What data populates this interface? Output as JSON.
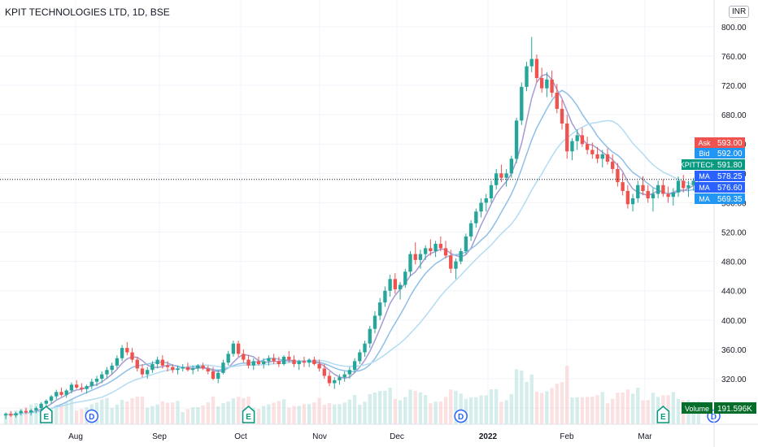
{
  "header": {
    "title": "KPIT TECHNOLOGIES LTD, 1D, BSE",
    "currency": "INR"
  },
  "colors": {
    "up": "#26a69a",
    "down": "#ef5350",
    "grid": "#f0f3fa",
    "axis_text": "#131722",
    "ma1": "#a69cd1",
    "ma2": "#8fbfe6",
    "ma3": "#b3dcf2",
    "ask": "#ef5350",
    "bid": "#2196f3",
    "last": "#089981",
    "ma_badge": "#2962ff",
    "volume_badge": "#056d2a"
  },
  "chart_data": {
    "type": "candlestick",
    "y_ticks": [
      "800.00",
      "760.00",
      "720.00",
      "680.00",
      "640.00",
      "600.00",
      "560.00",
      "520.00",
      "480.00",
      "440.00",
      "400.00",
      "360.00",
      "320.00",
      "280.00"
    ],
    "ylim": [
      258,
      812
    ],
    "x_ticks": [
      "Aug",
      "Sep",
      "Oct",
      "Nov",
      "Dec",
      "2022",
      "Feb",
      "Mar"
    ],
    "price_tags": [
      {
        "label": "Ask",
        "value": "593.00",
        "color": "#ef5350",
        "price": 593.0
      },
      {
        "label": "Bid",
        "value": "592.00",
        "color": "#2196f3",
        "price": 592.0
      },
      {
        "label": "KPITTECH",
        "value": "591.80",
        "color": "#089981",
        "price": 591.8
      },
      {
        "label": "MA",
        "value": "578.25",
        "color": "#2962ff",
        "price": 578.25
      },
      {
        "label": "MA",
        "value": "576.60",
        "color": "#2962ff",
        "price": 576.6
      },
      {
        "label": "MA",
        "value": "569.35",
        "color": "#2196f3",
        "price": 569.35
      }
    ],
    "volume": {
      "label": "Volume",
      "value": "191.596K"
    },
    "events": [
      {
        "type": "E",
        "x_index": 8
      },
      {
        "type": "D",
        "x_index": 17
      },
      {
        "type": "E",
        "x_index": 48
      },
      {
        "type": "D",
        "x_index": 90
      },
      {
        "type": "E",
        "x_index": 130
      },
      {
        "type": "D",
        "x_index": 140
      }
    ],
    "candles": [
      [
        270,
        274,
        265,
        272
      ],
      [
        272,
        276,
        268,
        270
      ],
      [
        270,
        275,
        267,
        273
      ],
      [
        273,
        278,
        270,
        276
      ],
      [
        276,
        280,
        272,
        274
      ],
      [
        274,
        279,
        270,
        277
      ],
      [
        277,
        282,
        273,
        280
      ],
      [
        280,
        288,
        276,
        286
      ],
      [
        286,
        292,
        282,
        290
      ],
      [
        290,
        298,
        286,
        296
      ],
      [
        296,
        305,
        292,
        302
      ],
      [
        302,
        308,
        296,
        298
      ],
      [
        298,
        306,
        294,
        304
      ],
      [
        304,
        315,
        300,
        312
      ],
      [
        312,
        318,
        306,
        308
      ],
      [
        308,
        314,
        302,
        306
      ],
      [
        306,
        312,
        300,
        310
      ],
      [
        310,
        320,
        306,
        316
      ],
      [
        316,
        324,
        310,
        320
      ],
      [
        320,
        330,
        314,
        326
      ],
      [
        326,
        336,
        320,
        332
      ],
      [
        332,
        342,
        326,
        338
      ],
      [
        338,
        352,
        334,
        348
      ],
      [
        348,
        366,
        344,
        362
      ],
      [
        362,
        370,
        352,
        356
      ],
      [
        356,
        362,
        342,
        346
      ],
      [
        346,
        350,
        330,
        334
      ],
      [
        334,
        340,
        322,
        326
      ],
      [
        326,
        336,
        320,
        332
      ],
      [
        332,
        344,
        328,
        340
      ],
      [
        340,
        350,
        334,
        346
      ],
      [
        346,
        352,
        334,
        338
      ],
      [
        338,
        344,
        330,
        336
      ],
      [
        336,
        340,
        328,
        332
      ],
      [
        332,
        338,
        326,
        334
      ],
      [
        334,
        340,
        330,
        336
      ],
      [
        336,
        342,
        330,
        332
      ],
      [
        332,
        338,
        326,
        334
      ],
      [
        334,
        340,
        330,
        338
      ],
      [
        338,
        342,
        332,
        334
      ],
      [
        334,
        338,
        326,
        330
      ],
      [
        330,
        336,
        318,
        320
      ],
      [
        320,
        332,
        314,
        328
      ],
      [
        328,
        346,
        326,
        342
      ],
      [
        342,
        358,
        338,
        354
      ],
      [
        354,
        372,
        350,
        368
      ],
      [
        368,
        372,
        350,
        354
      ],
      [
        354,
        360,
        342,
        346
      ],
      [
        346,
        352,
        334,
        338
      ],
      [
        338,
        348,
        332,
        344
      ],
      [
        344,
        350,
        338,
        340
      ],
      [
        340,
        348,
        334,
        344
      ],
      [
        344,
        352,
        338,
        348
      ],
      [
        348,
        354,
        340,
        344
      ],
      [
        344,
        350,
        336,
        340
      ],
      [
        340,
        352,
        338,
        350
      ],
      [
        350,
        358,
        342,
        346
      ],
      [
        346,
        352,
        336,
        340
      ],
      [
        340,
        346,
        332,
        344
      ],
      [
        344,
        350,
        336,
        342
      ],
      [
        342,
        348,
        336,
        346
      ],
      [
        346,
        350,
        338,
        340
      ],
      [
        340,
        346,
        330,
        334
      ],
      [
        334,
        340,
        320,
        324
      ],
      [
        324,
        330,
        310,
        314
      ],
      [
        314,
        322,
        306,
        318
      ],
      [
        318,
        326,
        312,
        322
      ],
      [
        322,
        330,
        316,
        326
      ],
      [
        326,
        336,
        320,
        332
      ],
      [
        332,
        348,
        328,
        344
      ],
      [
        344,
        360,
        340,
        356
      ],
      [
        356,
        372,
        350,
        368
      ],
      [
        368,
        392,
        362,
        388
      ],
      [
        388,
        412,
        382,
        406
      ],
      [
        406,
        430,
        400,
        424
      ],
      [
        424,
        446,
        418,
        440
      ],
      [
        440,
        462,
        432,
        456
      ],
      [
        456,
        464,
        436,
        442
      ],
      [
        442,
        452,
        428,
        448
      ],
      [
        448,
        470,
        444,
        466
      ],
      [
        466,
        494,
        460,
        490
      ],
      [
        490,
        506,
        476,
        482
      ],
      [
        482,
        496,
        470,
        490
      ],
      [
        490,
        502,
        482,
        498
      ],
      [
        498,
        510,
        488,
        494
      ],
      [
        494,
        508,
        486,
        504
      ],
      [
        504,
        514,
        494,
        498
      ],
      [
        498,
        508,
        484,
        488
      ],
      [
        488,
        496,
        464,
        470
      ],
      [
        470,
        484,
        456,
        480
      ],
      [
        480,
        498,
        476,
        494
      ],
      [
        494,
        518,
        490,
        514
      ],
      [
        514,
        536,
        508,
        532
      ],
      [
        532,
        552,
        526,
        548
      ],
      [
        548,
        566,
        540,
        560
      ],
      [
        560,
        572,
        548,
        566
      ],
      [
        566,
        590,
        560,
        584
      ],
      [
        584,
        606,
        578,
        600
      ],
      [
        600,
        612,
        588,
        594
      ],
      [
        594,
        606,
        582,
        600
      ],
      [
        600,
        624,
        594,
        620
      ],
      [
        620,
        676,
        614,
        672
      ],
      [
        672,
        724,
        666,
        718
      ],
      [
        718,
        752,
        712,
        746
      ],
      [
        746,
        786,
        738,
        756
      ],
      [
        756,
        762,
        724,
        730
      ],
      [
        730,
        744,
        710,
        716
      ],
      [
        716,
        738,
        704,
        728
      ],
      [
        728,
        740,
        704,
        710
      ],
      [
        710,
        722,
        682,
        688
      ],
      [
        688,
        700,
        660,
        668
      ],
      [
        668,
        680,
        620,
        630
      ],
      [
        630,
        648,
        618,
        644
      ],
      [
        644,
        660,
        632,
        652
      ],
      [
        652,
        662,
        636,
        640
      ],
      [
        640,
        650,
        626,
        632
      ],
      [
        632,
        642,
        620,
        626
      ],
      [
        626,
        636,
        614,
        620
      ],
      [
        620,
        632,
        608,
        626
      ],
      [
        626,
        634,
        612,
        616
      ],
      [
        616,
        626,
        600,
        606
      ],
      [
        606,
        614,
        582,
        588
      ],
      [
        588,
        600,
        570,
        576
      ],
      [
        576,
        584,
        552,
        558
      ],
      [
        558,
        572,
        548,
        566
      ],
      [
        566,
        590,
        560,
        584
      ],
      [
        584,
        596,
        570,
        576
      ],
      [
        576,
        584,
        560,
        566
      ],
      [
        566,
        580,
        548,
        572
      ],
      [
        572,
        590,
        566,
        584
      ],
      [
        584,
        592,
        568,
        572
      ],
      [
        572,
        582,
        560,
        568
      ],
      [
        568,
        580,
        556,
        574
      ],
      [
        574,
        596,
        568,
        590
      ],
      [
        590,
        598,
        574,
        580
      ],
      [
        580,
        590,
        568,
        584
      ],
      [
        584,
        594,
        576,
        590
      ],
      [
        590,
        596,
        580,
        592
      ]
    ]
  }
}
